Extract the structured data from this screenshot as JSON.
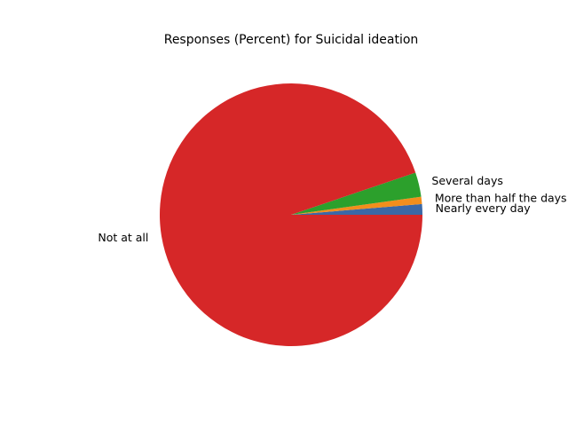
{
  "chart_data": {
    "type": "pie",
    "title": "Responses (Percent) for Suicidal ideation",
    "categories": [
      "Nearly every day",
      "More than half the days",
      "Several days",
      "Not at all"
    ],
    "values": [
      1.3,
      0.9,
      3.0,
      94.8
    ],
    "colors": [
      "#3b68a6",
      "#f28e1c",
      "#2ca02c",
      "#d62728"
    ],
    "start_angle_deg": 0,
    "direction": "counterclockwise",
    "legend": "none"
  }
}
